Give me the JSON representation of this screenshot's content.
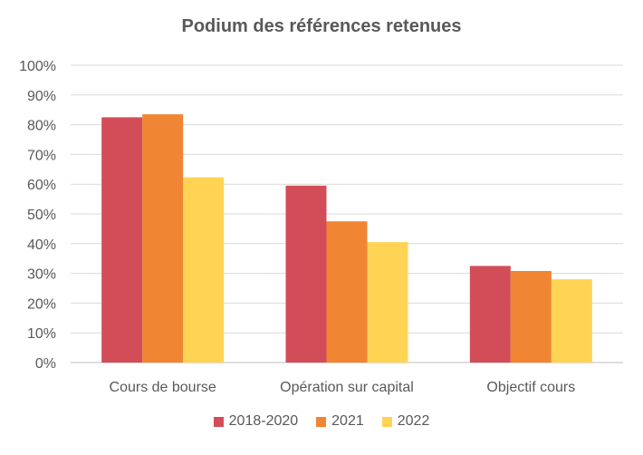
{
  "chart_data": {
    "type": "bar",
    "title": "Podium des références retenues",
    "xlabel": "",
    "ylabel": "",
    "categories": [
      "Cours de bourse",
      "Opération sur capital",
      "Objectif cours"
    ],
    "series": [
      {
        "name": "2018-2020",
        "values": [
          82.5,
          59.5,
          32.5
        ],
        "color": "#D24D57"
      },
      {
        "name": "2021",
        "values": [
          83.5,
          47.5,
          30.8
        ],
        "color": "#F08533"
      },
      {
        "name": "2022",
        "values": [
          62.3,
          40.5,
          28.0
        ],
        "color": "#FFD454"
      }
    ],
    "ylim": [
      0,
      100
    ],
    "yticks": [
      "0%",
      "10%",
      "20%",
      "30%",
      "40%",
      "50%",
      "60%",
      "70%",
      "80%",
      "90%",
      "100%"
    ],
    "grid": true,
    "legend_position": "bottom",
    "gridline_color": "#D9D9D9",
    "axis_color": "#BFBFBF",
    "text_color": "#595959"
  }
}
